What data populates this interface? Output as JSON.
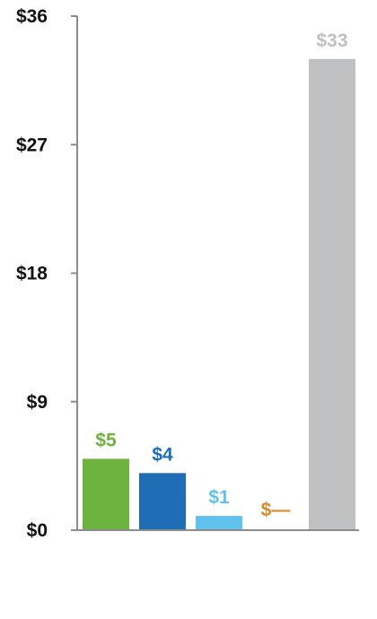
{
  "chart_data": {
    "type": "bar",
    "ylim": [
      0,
      36
    ],
    "y_ticks": [
      {
        "value": 0,
        "label": "$0"
      },
      {
        "value": 9,
        "label": "$9"
      },
      {
        "value": 18,
        "label": "$18"
      },
      {
        "value": 27,
        "label": "$27"
      },
      {
        "value": 36,
        "label": "$36"
      }
    ],
    "bars": [
      {
        "value": 5,
        "label": "$5",
        "color": "#6db33f"
      },
      {
        "value": 4,
        "label": "$4",
        "color": "#1f6db5"
      },
      {
        "value": 1,
        "label": "$1",
        "color": "#62c2ee"
      },
      {
        "value": 0,
        "label": "$—",
        "color": "#d48b2c"
      },
      {
        "value": 33,
        "label": "$33",
        "color": "#bfc0c2"
      }
    ],
    "grid": false,
    "legend": "none",
    "axis_color": "#8c8c8c"
  }
}
